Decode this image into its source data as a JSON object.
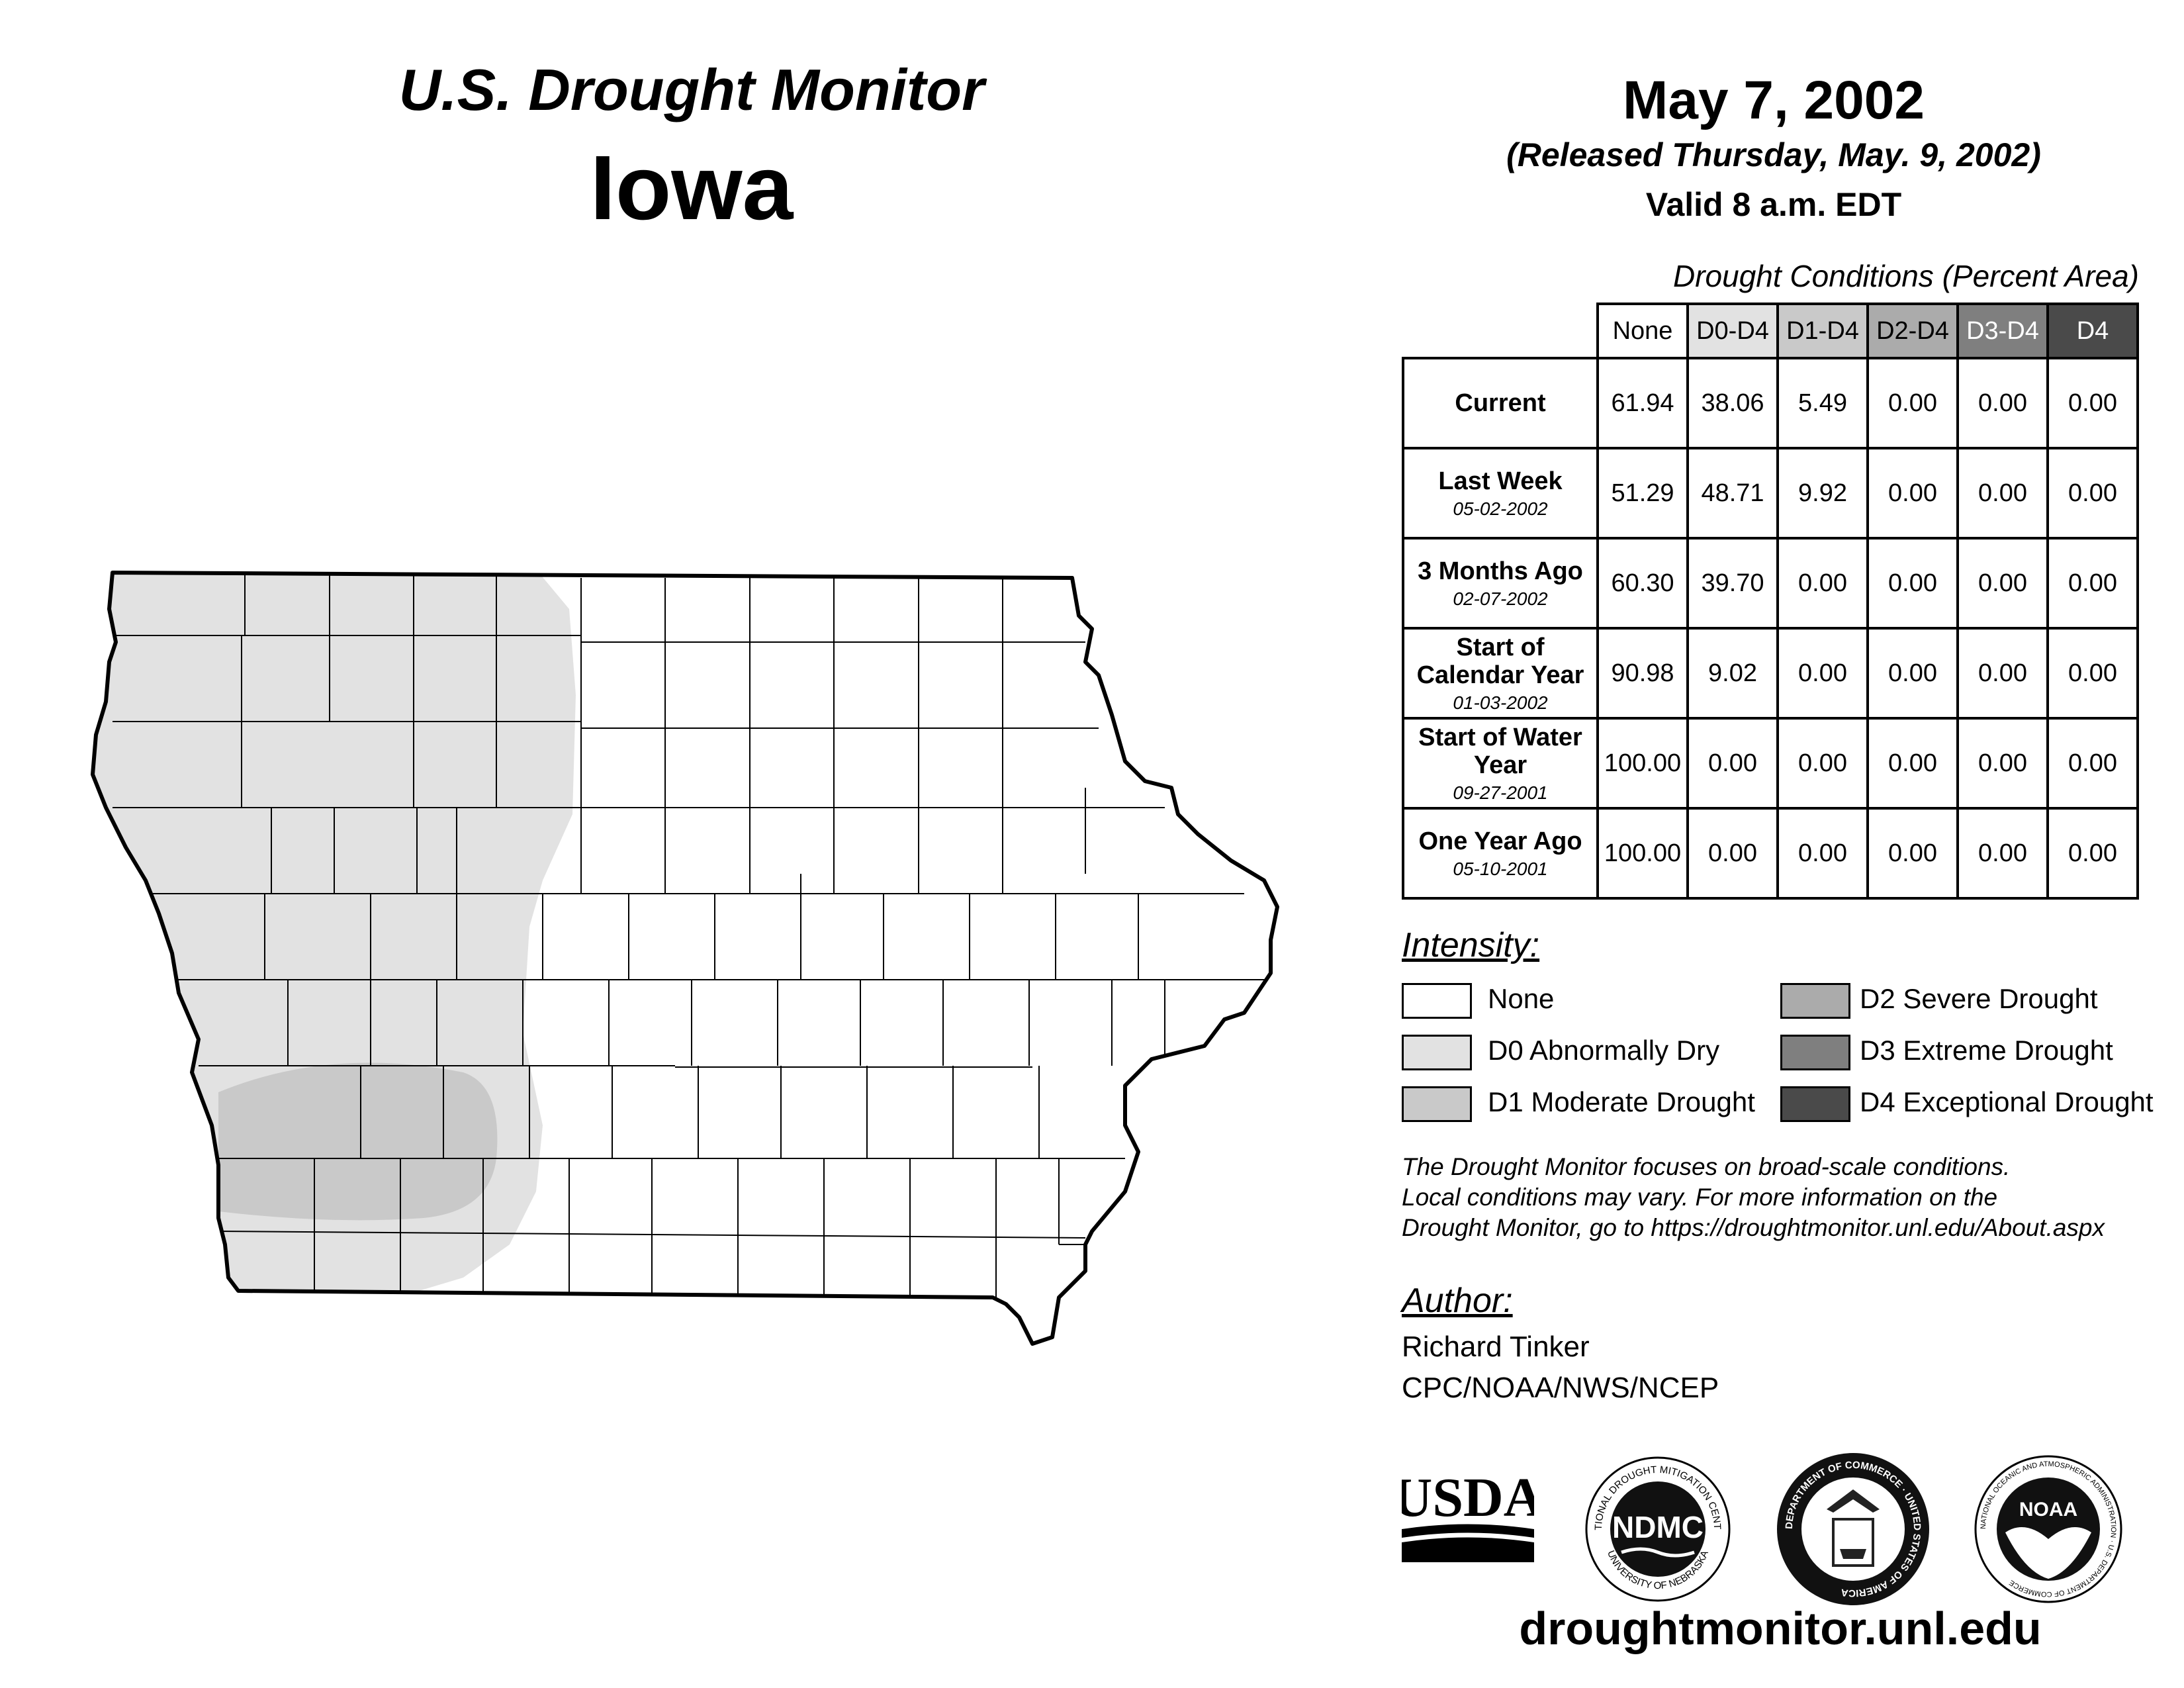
{
  "header": {
    "subtitle": "U.S. Drought Monitor",
    "state": "Iowa",
    "date": "May 7, 2002",
    "released": "(Released Thursday, May. 9, 2002)",
    "valid": "Valid 8 a.m. EDT"
  },
  "table": {
    "caption": "Drought Conditions (Percent Area)",
    "columns": [
      "None",
      "D0-D4",
      "D1-D4",
      "D2-D4",
      "D3-D4",
      "D4"
    ],
    "rows": [
      {
        "label": "Current",
        "date": "",
        "values": [
          "61.94",
          "38.06",
          "5.49",
          "0.00",
          "0.00",
          "0.00"
        ]
      },
      {
        "label": "Last Week",
        "date": "05-02-2002",
        "values": [
          "51.29",
          "48.71",
          "9.92",
          "0.00",
          "0.00",
          "0.00"
        ]
      },
      {
        "label": "3 Months Ago",
        "date": "02-07-2002",
        "values": [
          "60.30",
          "39.70",
          "0.00",
          "0.00",
          "0.00",
          "0.00"
        ]
      },
      {
        "label": "Start of Calendar Year",
        "date": "01-03-2002",
        "values": [
          "90.98",
          "9.02",
          "0.00",
          "0.00",
          "0.00",
          "0.00"
        ]
      },
      {
        "label": "Start of Water Year",
        "date": "09-27-2001",
        "values": [
          "100.00",
          "0.00",
          "0.00",
          "0.00",
          "0.00",
          "0.00"
        ]
      },
      {
        "label": "One Year Ago",
        "date": "05-10-2001",
        "values": [
          "100.00",
          "0.00",
          "0.00",
          "0.00",
          "0.00",
          "0.00"
        ]
      }
    ]
  },
  "legend": {
    "title": "Intensity:",
    "items": [
      {
        "label": "None",
        "color": "#ffffff"
      },
      {
        "label": "D0 Abnormally Dry",
        "color": "#e2e2e2"
      },
      {
        "label": "D1 Moderate Drought",
        "color": "#c9c9c9"
      },
      {
        "label": "D2 Severe Drought",
        "color": "#ababab"
      },
      {
        "label": "D3 Extreme Drought",
        "color": "#7f7f7f"
      },
      {
        "label": "D4 Exceptional Drought",
        "color": "#4a4a4a"
      }
    ]
  },
  "note": {
    "line1": "The Drought Monitor focuses on broad-scale conditions.",
    "line2": "Local conditions may vary. For more information on the",
    "line3": "Drought Monitor, go to https://droughtmonitor.unl.edu/About.aspx"
  },
  "author": {
    "title": "Author:",
    "name": "Richard Tinker",
    "org": "CPC/NOAA/NWS/NCEP"
  },
  "logos": {
    "usda": "USDA",
    "ndmc": "NDMC",
    "ndmc_ring_top": "NATIONAL DROUGHT MITIGATION CENTER",
    "ndmc_ring_bottom": "UNIVERSITY OF NEBRASKA",
    "doc_ring": "DEPARTMENT OF COMMERCE · UNITED STATES OF AMERICA",
    "noaa": "NOAA",
    "noaa_ring": "NATIONAL OCEANIC AND ATMOSPHERIC ADMINISTRATION · U.S. DEPARTMENT OF COMMERCE"
  },
  "footer": {
    "url": "droughtmonitor.unl.edu"
  },
  "colors": {
    "d0": "#e2e2e2",
    "d1": "#c9c9c9",
    "outline": "#000000"
  }
}
